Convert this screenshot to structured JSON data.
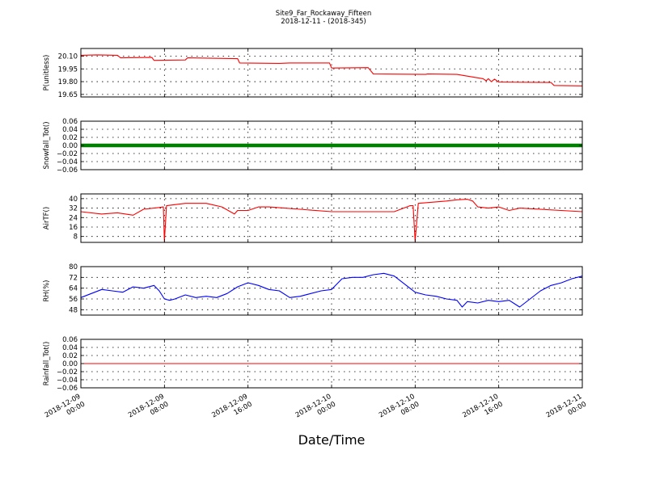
{
  "figure": {
    "title": "Site9_Far_Rockaway_Fifteen",
    "subtitle": "2018-12-11 - (2018-345)",
    "xlabel": "Date/Time"
  },
  "chart_data": [
    {
      "type": "line",
      "ylabel": "P(unitless)",
      "ylim": [
        19.62,
        20.19
      ],
      "yticks": [
        20.1,
        19.95,
        19.8,
        19.65
      ],
      "ytick_labels": [
        "20.10",
        "19.95",
        "19.80",
        "19.65"
      ],
      "color": "#ff0000",
      "x": [
        0,
        1.5,
        3.5,
        3.8,
        6.8,
        7,
        10,
        10.2,
        15,
        15.2,
        19,
        20,
        23.8,
        24,
        27.5,
        28,
        33,
        33.2,
        36,
        38.5,
        38.8,
        39,
        39.3,
        39.6,
        40,
        45,
        45.3,
        48
      ],
      "y": [
        20.11,
        20.115,
        20.11,
        20.08,
        20.085,
        20.05,
        20.055,
        20.08,
        20.07,
        20.02,
        20.015,
        20.02,
        20.02,
        19.96,
        19.965,
        19.89,
        19.885,
        19.89,
        19.885,
        19.835,
        19.81,
        19.835,
        19.8,
        19.83,
        19.795,
        19.79,
        19.755,
        19.75
      ]
    },
    {
      "type": "line",
      "ylabel": "Snowfall_Tot()",
      "ylim": [
        -0.06,
        0.06
      ],
      "yticks": [
        0.06,
        0.04,
        0.02,
        0.0,
        -0.02,
        -0.04,
        -0.06
      ],
      "ytick_labels": [
        "0.06",
        "0.04",
        "0.02",
        "0.00",
        "−0.02",
        "−0.04",
        "−0.06"
      ],
      "color": "#008000",
      "x": [
        0,
        48
      ],
      "y": [
        0,
        0
      ]
    },
    {
      "type": "line",
      "ylabel": "AirTF()",
      "ylim": [
        3,
        44
      ],
      "yticks": [
        40,
        32,
        24,
        16,
        8
      ],
      "ytick_labels": [
        "40",
        "32",
        "24",
        "16",
        "8"
      ],
      "color": "#ff0000",
      "x": [
        0,
        2,
        3.5,
        5,
        6,
        7.5,
        7.9,
        8,
        8.2,
        10,
        12,
        13.5,
        14.7,
        15,
        16,
        17,
        18,
        24,
        30,
        31.5,
        31.8,
        32,
        32.3,
        35,
        36,
        37,
        37.5,
        38,
        39,
        40,
        41,
        42,
        48
      ],
      "y": [
        29,
        27,
        28,
        26,
        31,
        32.5,
        33,
        4,
        34,
        36,
        36,
        33,
        27,
        30,
        30,
        33,
        33,
        29,
        29,
        34,
        34,
        4,
        36,
        38,
        39,
        39.5,
        38,
        33,
        32,
        33,
        30,
        32,
        29
      ]
    },
    {
      "type": "line",
      "ylabel": "RH(%)",
      "ylim": [
        44,
        80
      ],
      "yticks": [
        80,
        72,
        64,
        56,
        48
      ],
      "ytick_labels": [
        "80",
        "72",
        "64",
        "56",
        "48"
      ],
      "color": "#0000ff",
      "x": [
        0,
        1,
        2,
        3,
        4,
        5,
        6,
        7,
        7.5,
        8,
        8.5,
        9,
        10,
        11,
        12,
        13,
        14,
        15,
        16,
        17,
        18,
        19,
        20,
        21,
        22,
        23,
        24,
        25,
        26,
        27,
        28,
        29,
        30,
        31,
        32,
        33,
        34,
        35,
        36,
        36.5,
        37,
        38,
        39,
        40,
        41,
        42,
        43,
        44,
        45,
        46,
        47,
        48
      ],
      "y": [
        57,
        60,
        63,
        62,
        61,
        65,
        64,
        66,
        62,
        56,
        55,
        56,
        59,
        57,
        58,
        57,
        60,
        65,
        68,
        66,
        63,
        62,
        57,
        58,
        60,
        62,
        63,
        71,
        72,
        72,
        74,
        75,
        73,
        67,
        61,
        59,
        58,
        56,
        55,
        50,
        54,
        53,
        55,
        54,
        55,
        50,
        56,
        62,
        66,
        68,
        71,
        73
      ]
    },
    {
      "type": "line",
      "ylabel": "Rainfall_Tot()",
      "ylim": [
        -0.06,
        0.06
      ],
      "yticks": [
        0.06,
        0.04,
        0.02,
        0.0,
        -0.02,
        -0.04,
        -0.06
      ],
      "ytick_labels": [
        "0.06",
        "0.04",
        "0.02",
        "0.00",
        "−0.02",
        "−0.04",
        "−0.06"
      ],
      "color": "#ff0000",
      "x": [
        0,
        48
      ],
      "y": [
        0,
        0
      ]
    }
  ],
  "xaxis": {
    "range_hours": [
      0,
      48
    ],
    "ticks_hours": [
      0,
      8,
      16,
      24,
      32,
      40,
      48
    ],
    "tick_labels": [
      [
        "2018-12-09",
        "00:00"
      ],
      [
        "2018-12-09",
        "08:00"
      ],
      [
        "2018-12-09",
        "16:00"
      ],
      [
        "2018-12-10",
        "00:00"
      ],
      [
        "2018-12-10",
        "08:00"
      ],
      [
        "2018-12-10",
        "16:00"
      ],
      [
        "2018-12-11",
        "00:00"
      ]
    ]
  }
}
